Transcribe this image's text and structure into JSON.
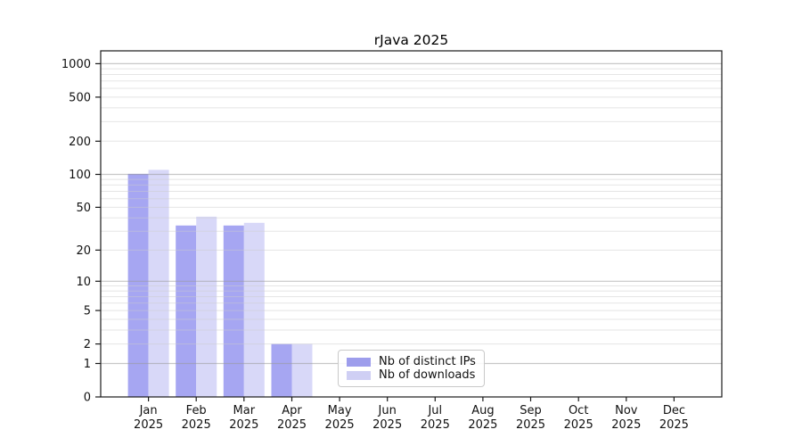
{
  "chart_data": {
    "type": "bar",
    "title": "rJava 2025",
    "yscale": "log10(value+1)",
    "ylim": [
      0,
      1100
    ],
    "grid": true,
    "legend_position": "lower-center-inside",
    "categories": [
      "Jan",
      "Feb",
      "Mar",
      "Apr",
      "May",
      "Jun",
      "Jul",
      "Aug",
      "Sep",
      "Oct",
      "Nov",
      "Dec"
    ],
    "category_year": "2025",
    "yticks": [
      0,
      1,
      2,
      5,
      10,
      20,
      50,
      100,
      200,
      500,
      1000
    ],
    "series": [
      {
        "name": "Nb of distinct IPs",
        "color": "#a6a6f2",
        "legend_color": "#9d9dec",
        "values": [
          101,
          34,
          34,
          2,
          0,
          0,
          0,
          0,
          0,
          0,
          0,
          0
        ]
      },
      {
        "name": "Nb of downloads",
        "color": "#d8d8f8",
        "legend_color": "#cfcff4",
        "values": [
          110,
          41,
          36,
          2,
          0,
          0,
          0,
          0,
          0,
          0,
          0,
          0
        ]
      }
    ],
    "colors": {
      "major_grid": "#c9c9c9",
      "minor_grid": "#e9e9e9",
      "axis": "#1a1a1a",
      "text": "#111111"
    }
  }
}
